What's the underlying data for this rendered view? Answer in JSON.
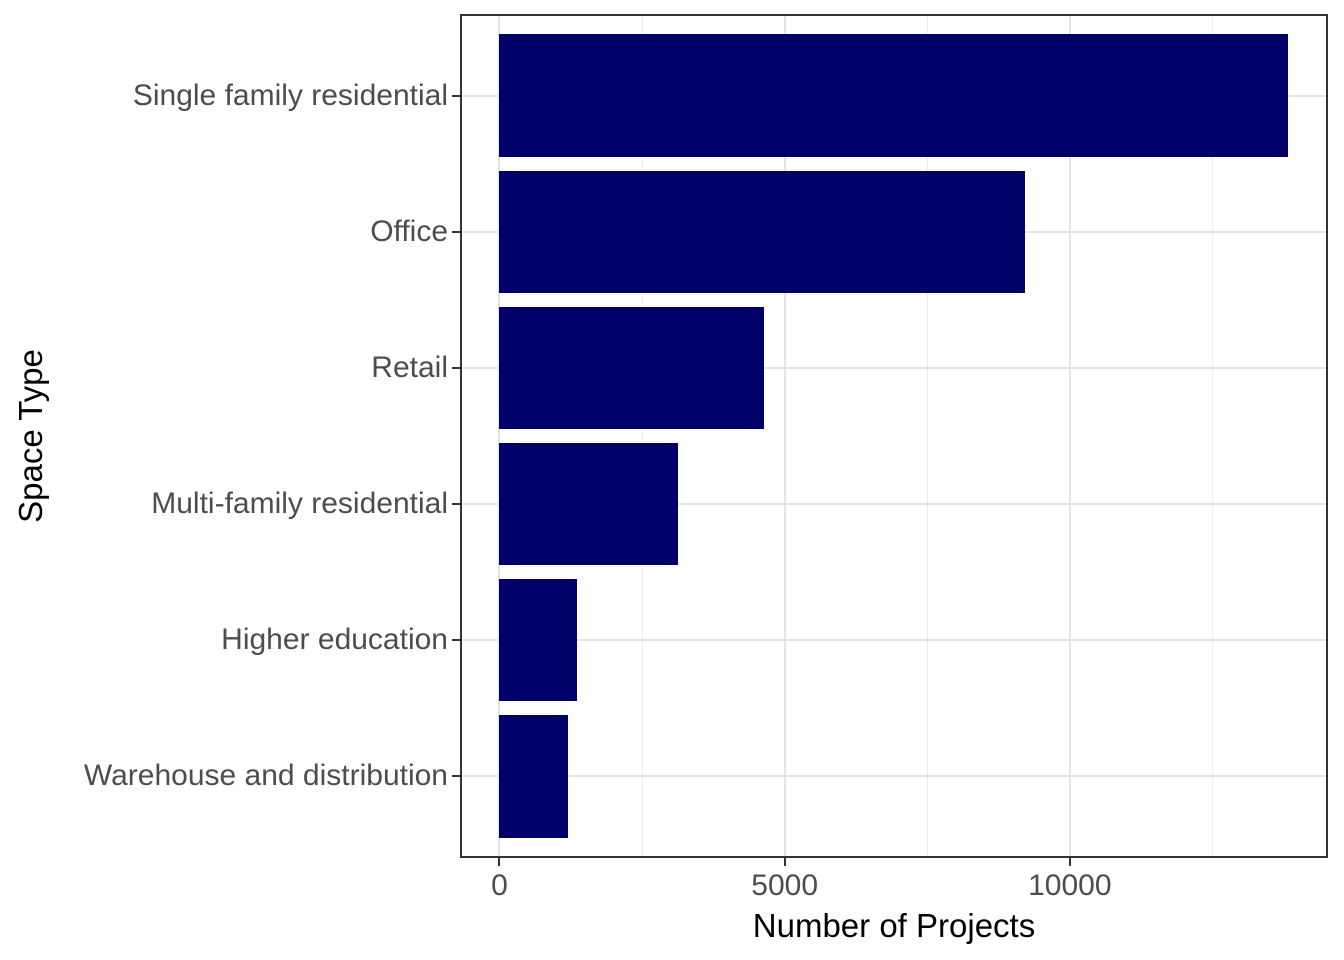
{
  "chart_data": {
    "type": "bar",
    "orientation": "horizontal",
    "title": "",
    "xlabel": "Number of Projects",
    "ylabel": "Space Type",
    "categories": [
      "Single family residential",
      "Office",
      "Retail",
      "Multi-family residential",
      "Higher education",
      "Warehouse and distribution"
    ],
    "values": [
      13830,
      9210,
      4640,
      3130,
      1360,
      1210
    ],
    "x_major_ticks": [
      0,
      5000,
      10000
    ],
    "x_tick_labels": [
      "0",
      "5000",
      "10000"
    ],
    "x_minor_gridlines": [
      2500,
      7500,
      12500
    ],
    "xlim": [
      0,
      13830
    ],
    "xlim_expanded": [
      -692,
      14526
    ],
    "grid": "vertical major+minor, horizontal major at category centers",
    "legend": "none",
    "colors": {
      "bar_fill": "#00006B",
      "panel_border": "#333333",
      "tick_mark": "#333333",
      "grid_major": "#E4E4E4",
      "grid_minor": "#EDEDED",
      "tick_label": "#4D4D4D",
      "axis_title": "#000000",
      "background": "#FFFFFF"
    }
  }
}
